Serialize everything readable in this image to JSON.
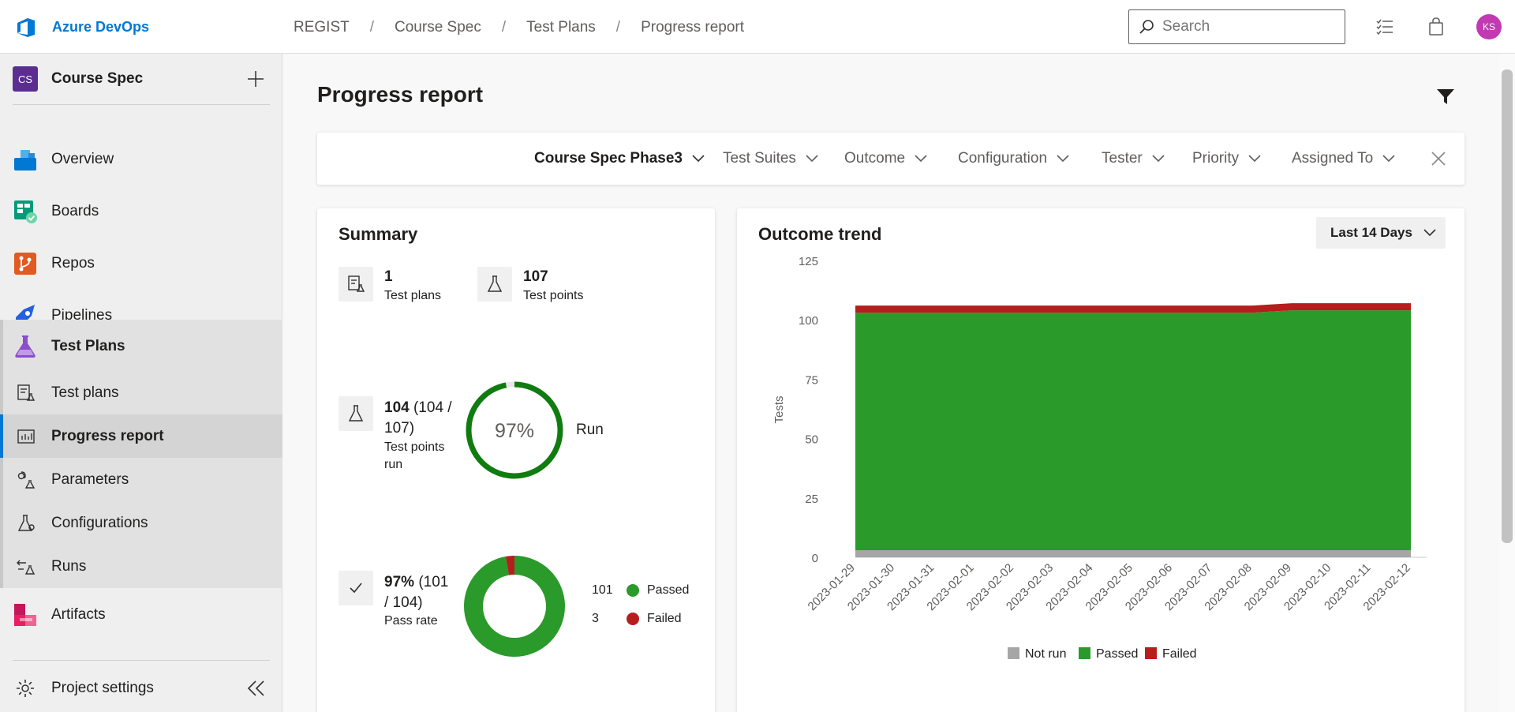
{
  "app": {
    "brand": "Azure DevOps"
  },
  "breadcrumbs": [
    "REGIST",
    "Course Spec",
    "Test Plans",
    "Progress report"
  ],
  "search": {
    "placeholder": "Search"
  },
  "user": {
    "initials": "KS"
  },
  "project": {
    "badge": "CS",
    "name": "Course Spec"
  },
  "nav": {
    "overview": "Overview",
    "boards": "Boards",
    "repos": "Repos",
    "pipelines": "Pipelines",
    "test_plans": "Test Plans",
    "sub": {
      "test_plans": "Test plans",
      "progress_report": "Progress report",
      "parameters": "Parameters",
      "configurations": "Configurations",
      "runs": "Runs"
    },
    "artifacts": "Artifacts",
    "settings": "Project settings"
  },
  "page": {
    "title": "Progress report"
  },
  "filters": {
    "plan": "Course Spec Phase3",
    "suites": "Test Suites",
    "outcome": "Outcome",
    "configuration": "Configuration",
    "tester": "Tester",
    "priority": "Priority",
    "assigned": "Assigned To"
  },
  "summary": {
    "title": "Summary",
    "test_plans_count": "1",
    "test_plans_label": "Test plans",
    "test_points_count": "107",
    "test_points_label": "Test points",
    "run_count": "104",
    "run_detail": "(104 / 107)",
    "run_label": "Test points run",
    "run_percent": "97%",
    "run_percent_value": 97,
    "run_word": "Run",
    "pass_rate": "97%",
    "pass_detail": "(101 / 104)",
    "pass_label": "Pass rate",
    "passed_count": "101",
    "passed_label": "Passed",
    "failed_count": "3",
    "failed_label": "Failed"
  },
  "trend": {
    "title": "Outcome trend",
    "range": "Last 14 Days"
  },
  "colors": {
    "passed": "#2a9a2a",
    "failed": "#b61d1d",
    "not_run": "#a6a6a6",
    "run_ring": "#107c10",
    "accent": "#0078d4"
  },
  "chart_data": {
    "type": "area",
    "title": "Outcome trend",
    "xlabel": "",
    "ylabel": "Tests",
    "ylim": [
      0,
      125
    ],
    "yticks": [
      0,
      25,
      50,
      75,
      100,
      125
    ],
    "categories": [
      "2023-01-29",
      "2023-01-30",
      "2023-01-31",
      "2023-02-01",
      "2023-02-02",
      "2023-02-03",
      "2023-02-04",
      "2023-02-05",
      "2023-02-06",
      "2023-02-07",
      "2023-02-08",
      "2023-02-09",
      "2023-02-10",
      "2023-02-11",
      "2023-02-12"
    ],
    "stacked": true,
    "series": [
      {
        "name": "Not run",
        "values": [
          3,
          3,
          3,
          3,
          3,
          3,
          3,
          3,
          3,
          3,
          3,
          3,
          3,
          3,
          3
        ]
      },
      {
        "name": "Passed",
        "values": [
          100,
          100,
          100,
          100,
          100,
          100,
          100,
          100,
          100,
          100,
          100,
          101,
          101,
          101,
          101
        ]
      },
      {
        "name": "Failed",
        "values": [
          3,
          3,
          3,
          3,
          3,
          3,
          3,
          3,
          3,
          3,
          3,
          3,
          3,
          3,
          3
        ]
      }
    ],
    "legend": "bottom"
  }
}
